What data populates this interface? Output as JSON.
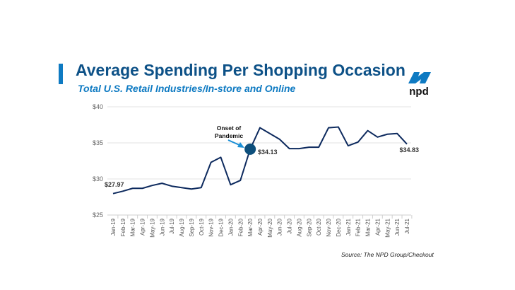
{
  "header": {
    "title": "Average Spending Per Shopping Occasion",
    "subtitle": "Total U.S. Retail Industries/In-store and Online"
  },
  "logo": {
    "text": "npd",
    "color": "#0e7ac2"
  },
  "source": "Source: The NPD Group/Checkout",
  "chart_data": {
    "type": "line",
    "categories": [
      "Jan-19",
      "Feb-19",
      "Mar-19",
      "Apr-19",
      "May-19",
      "Jun-19",
      "Jul-19",
      "Aug-19",
      "Sep-19",
      "Oct-19",
      "Nov-19",
      "Dec-19",
      "Jan-20",
      "Feb-20",
      "Mar-20",
      "Apr-20",
      "May-20",
      "Jun-20",
      "Jul-20",
      "Aug-20",
      "Sep-20",
      "Oct-20",
      "Nov-20",
      "Dec-20",
      "Jan-21",
      "Feb-21",
      "Mar-21",
      "Apr-21",
      "May-21",
      "Jun-21",
      "Jul-21"
    ],
    "values": [
      27.97,
      28.3,
      28.7,
      28.7,
      29.1,
      29.4,
      29.0,
      28.8,
      28.6,
      28.8,
      32.3,
      33.0,
      29.2,
      29.8,
      34.13,
      37.1,
      36.3,
      35.5,
      34.2,
      34.2,
      34.4,
      34.4,
      37.1,
      37.2,
      34.6,
      35.1,
      36.7,
      35.8,
      36.2,
      36.3,
      34.83
    ],
    "ylim": [
      25,
      40
    ],
    "yticks": [
      "$25",
      "$30",
      "$35",
      "$40"
    ],
    "ytick_values": [
      25,
      30,
      35,
      40
    ],
    "grid": true,
    "line_color": "#0d2a5e",
    "data_labels": [
      {
        "index": 0,
        "text": "$27.97"
      },
      {
        "index": 14,
        "text": "$34.13"
      },
      {
        "index": 30,
        "text": "$34.83"
      }
    ],
    "annotation": {
      "index": 14,
      "lines": [
        "Onset of",
        "Pandemic"
      ],
      "marker_color": "#0d4f7c",
      "arrow_color": "#1a8fd6"
    }
  }
}
